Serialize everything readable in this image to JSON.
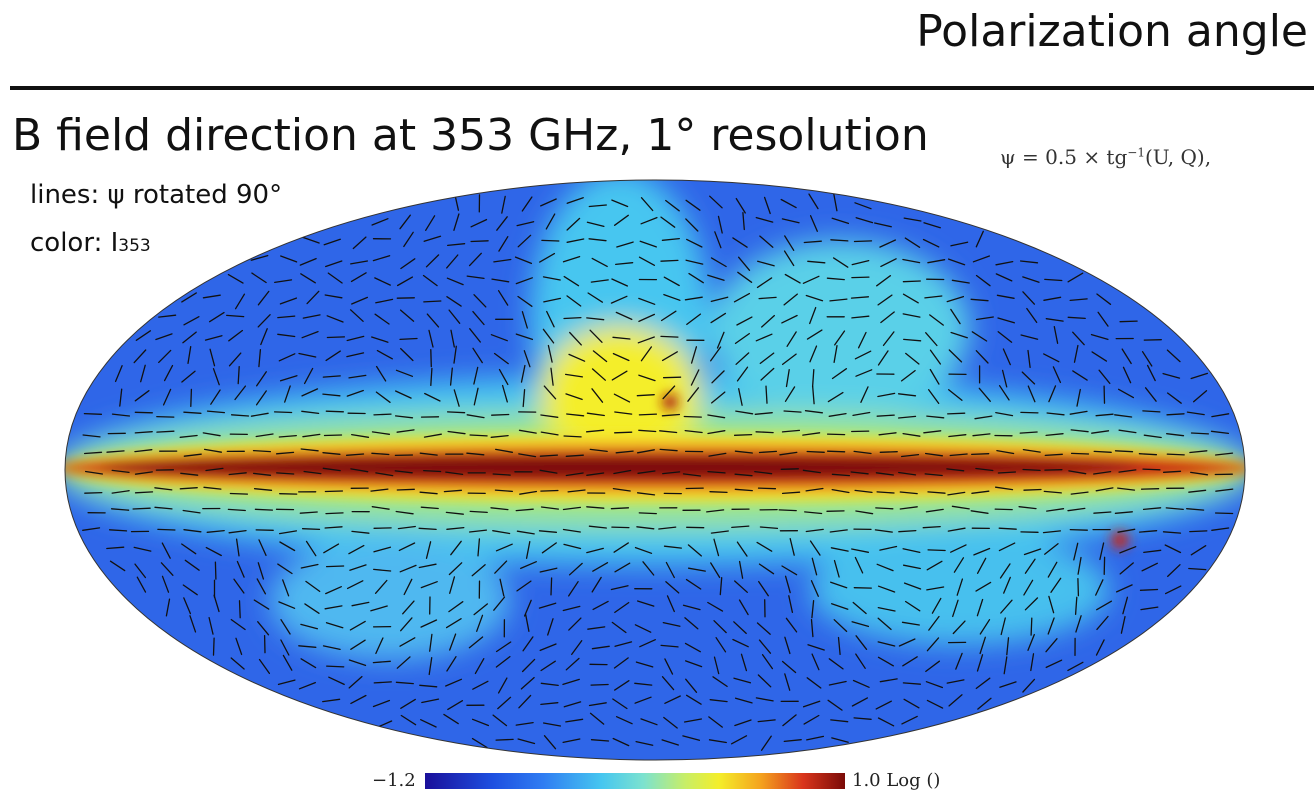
{
  "slide": {
    "title": "Polarization angle",
    "subtitle": "B field direction at 353 GHz, 1° resolution",
    "formula": {
      "lhs": "ψ = 0.5 × tg",
      "exponent": "−1",
      "rhs": "(U, Q),"
    },
    "legend": {
      "lines_label": "lines: ψ rotated 90°",
      "color_label": "color: I",
      "color_subscript": "353"
    }
  },
  "colorbar": {
    "min_label": "−1.2",
    "max_label": "1.0 Log ()",
    "colors": [
      "#1a0f9a",
      "#1d4fe0",
      "#2f7cf2",
      "#46c6f0",
      "#7ce2cf",
      "#c8ee67",
      "#f4ee2a",
      "#f4a21e",
      "#d9351c",
      "#7a0b08"
    ]
  },
  "map": {
    "projection": "mollweide",
    "background_color": "#2f66e8",
    "plane_color": "#7a0b08",
    "line_color": "#111111"
  }
}
